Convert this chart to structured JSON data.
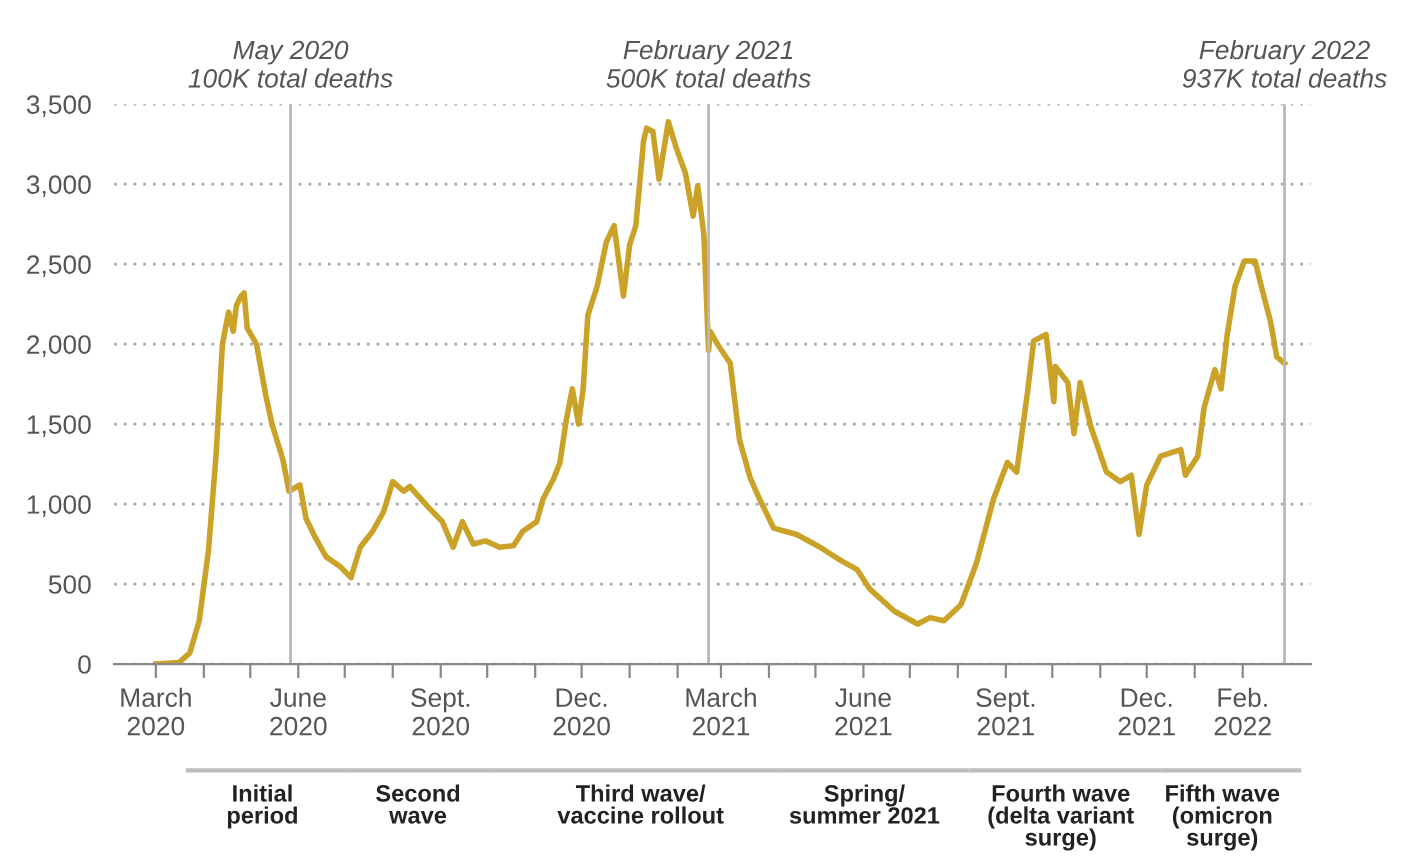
{
  "chart_data": {
    "type": "line",
    "x": [
      "2020-03-01",
      "2020-03-16",
      "2020-03-23",
      "2020-03-29",
      "2020-04-04",
      "2020-04-09",
      "2020-04-13",
      "2020-04-17",
      "2020-04-20",
      "2020-04-22",
      "2020-04-25",
      "2020-04-27",
      "2020-04-29",
      "2020-05-05",
      "2020-05-11",
      "2020-05-15",
      "2020-05-22",
      "2020-05-26",
      "2020-06-02",
      "2020-06-06",
      "2020-06-12",
      "2020-06-19",
      "2020-06-28",
      "2020-07-05",
      "2020-07-11",
      "2020-07-19",
      "2020-07-26",
      "2020-08-01",
      "2020-08-08",
      "2020-08-12",
      "2020-08-23",
      "2020-09-02",
      "2020-09-09",
      "2020-09-15",
      "2020-09-22",
      "2020-09-30",
      "2020-10-09",
      "2020-10-18",
      "2020-10-24",
      "2020-11-02",
      "2020-11-06",
      "2020-11-13",
      "2020-11-17",
      "2020-11-21",
      "2020-11-25",
      "2020-11-29",
      "2020-12-02",
      "2020-12-05",
      "2020-12-11",
      "2020-12-17",
      "2020-12-22",
      "2020-12-28",
      "2021-01-01",
      "2021-01-05",
      "2021-01-10",
      "2021-01-12",
      "2021-01-16",
      "2021-01-20",
      "2021-01-26",
      "2021-01-31",
      "2021-02-06",
      "2021-02-11",
      "2021-02-14",
      "2021-02-18",
      "2021-02-21",
      "2021-02-22",
      "2021-02-28",
      "2021-03-07",
      "2021-03-13",
      "2021-03-20",
      "2021-03-26",
      "2021-04-04",
      "2021-04-19",
      "2021-05-04",
      "2021-05-17",
      "2021-05-28",
      "2021-06-05",
      "2021-06-21",
      "2021-07-06",
      "2021-07-14",
      "2021-07-23",
      "2021-08-03",
      "2021-08-13",
      "2021-08-24",
      "2021-09-02",
      "2021-09-08",
      "2021-09-15",
      "2021-09-19",
      "2021-09-27",
      "2021-10-02",
      "2021-10-03",
      "2021-10-11",
      "2021-10-15",
      "2021-10-19",
      "2021-10-26",
      "2021-11-05",
      "2021-11-14",
      "2021-11-21",
      "2021-11-26",
      "2021-12-01",
      "2021-12-10",
      "2021-12-23",
      "2021-12-26",
      "2022-01-03",
      "2022-01-07",
      "2022-01-14",
      "2022-01-18",
      "2022-01-22",
      "2022-01-27",
      "2022-02-02",
      "2022-02-09",
      "2022-02-13",
      "2022-02-19",
      "2022-02-23",
      "2022-02-28"
    ],
    "series": [
      {
        "color": "#c9a227",
        "values": [
          0,
          10,
          70,
          270,
          710,
          1320,
          2000,
          2200,
          2080,
          2240,
          2300,
          2320,
          2100,
          2000,
          1680,
          1500,
          1280,
          1080,
          1120,
          910,
          790,
          670,
          610,
          540,
          730,
          830,
          950,
          1140,
          1080,
          1110,
          990,
          890,
          730,
          890,
          750,
          770,
          730,
          740,
          830,
          890,
          1030,
          1160,
          1260,
          1520,
          1720,
          1500,
          1720,
          2180,
          2360,
          2640,
          2740,
          2300,
          2620,
          2740,
          3270,
          3350,
          3330,
          3030,
          3390,
          3230,
          3070,
          2800,
          2990,
          2680,
          1960,
          2080,
          1980,
          1880,
          1400,
          1160,
          1030,
          850,
          810,
          730,
          650,
          590,
          470,
          330,
          250,
          290,
          270,
          370,
          630,
          1030,
          1260,
          1200,
          1700,
          2020,
          2060,
          1640,
          1860,
          1760,
          1440,
          1760,
          1480,
          1200,
          1140,
          1180,
          810,
          1120,
          1300,
          1340,
          1180,
          1300,
          1600,
          1840,
          1720,
          2060,
          2360,
          2520,
          2520,
          2360,
          2140,
          1920,
          1880
        ]
      }
    ],
    "xlim": [
      "2020-02-03",
      "2022-03-17"
    ],
    "xticks": [
      {
        "value": "2020-03-01",
        "label": "March\n2020"
      },
      {
        "value": "2020-04-01",
        "label": null
      },
      {
        "value": "2020-05-01",
        "label": null
      },
      {
        "value": "2020-06-01",
        "label": "June\n2020"
      },
      {
        "value": "2020-07-01",
        "label": null
      },
      {
        "value": "2020-08-01",
        "label": null
      },
      {
        "value": "2020-09-01",
        "label": "Sept.\n2020"
      },
      {
        "value": "2020-10-01",
        "label": null
      },
      {
        "value": "2020-11-01",
        "label": null
      },
      {
        "value": "2020-12-01",
        "label": "Dec.\n2020"
      },
      {
        "value": "2021-01-01",
        "label": null
      },
      {
        "value": "2021-02-01",
        "label": null
      },
      {
        "value": "2021-03-01",
        "label": "March\n2021"
      },
      {
        "value": "2021-04-01",
        "label": null
      },
      {
        "value": "2021-05-01",
        "label": null
      },
      {
        "value": "2021-06-01",
        "label": "June\n2021"
      },
      {
        "value": "2021-07-01",
        "label": null
      },
      {
        "value": "2021-08-01",
        "label": null
      },
      {
        "value": "2021-09-01",
        "label": "Sept.\n2021"
      },
      {
        "value": "2021-10-01",
        "label": null
      },
      {
        "value": "2021-11-01",
        "label": null
      },
      {
        "value": "2021-12-01",
        "label": "Dec.\n2021"
      },
      {
        "value": "2022-01-01",
        "label": null
      },
      {
        "value": "2022-02-01",
        "label": "Feb.\n2022"
      }
    ],
    "ylim": [
      0,
      3500
    ],
    "yticks": [
      0,
      {
        "value": 500,
        "label": "500"
      },
      {
        "value": 1000,
        "label": "1,000"
      },
      {
        "value": 1500,
        "label": "1,500"
      },
      {
        "value": 2000,
        "label": "2,000"
      },
      {
        "value": 2500,
        "label": "2,500"
      },
      {
        "value": 3000,
        "label": "3,000"
      },
      {
        "value": 3500,
        "label": "3,500"
      }
    ],
    "grid": "y",
    "line_style": "solid",
    "marker": "none",
    "ref_lines": [
      {
        "axis": "x",
        "value": "2020-05-27",
        "label": "May 2020\n100K total deaths",
        "color": "#b8b8b8"
      },
      {
        "axis": "x",
        "value": "2021-02-21",
        "label": "February 2021\n500K total deaths",
        "color": "#b8b8b8"
      },
      {
        "axis": "x",
        "value": "2022-02-28",
        "label": "February 2022\n937K total deaths",
        "color": "#b8b8b8"
      }
    ],
    "annotations": [
      "Initial\nperiod",
      "Second\nwave",
      "Third wave/\nvaccine rollout",
      "Spring/\nsummer 2021",
      "Fourth wave\n(delta variant\nsurge)",
      "Fifth wave\n(omicron\nsurge)"
    ]
  }
}
